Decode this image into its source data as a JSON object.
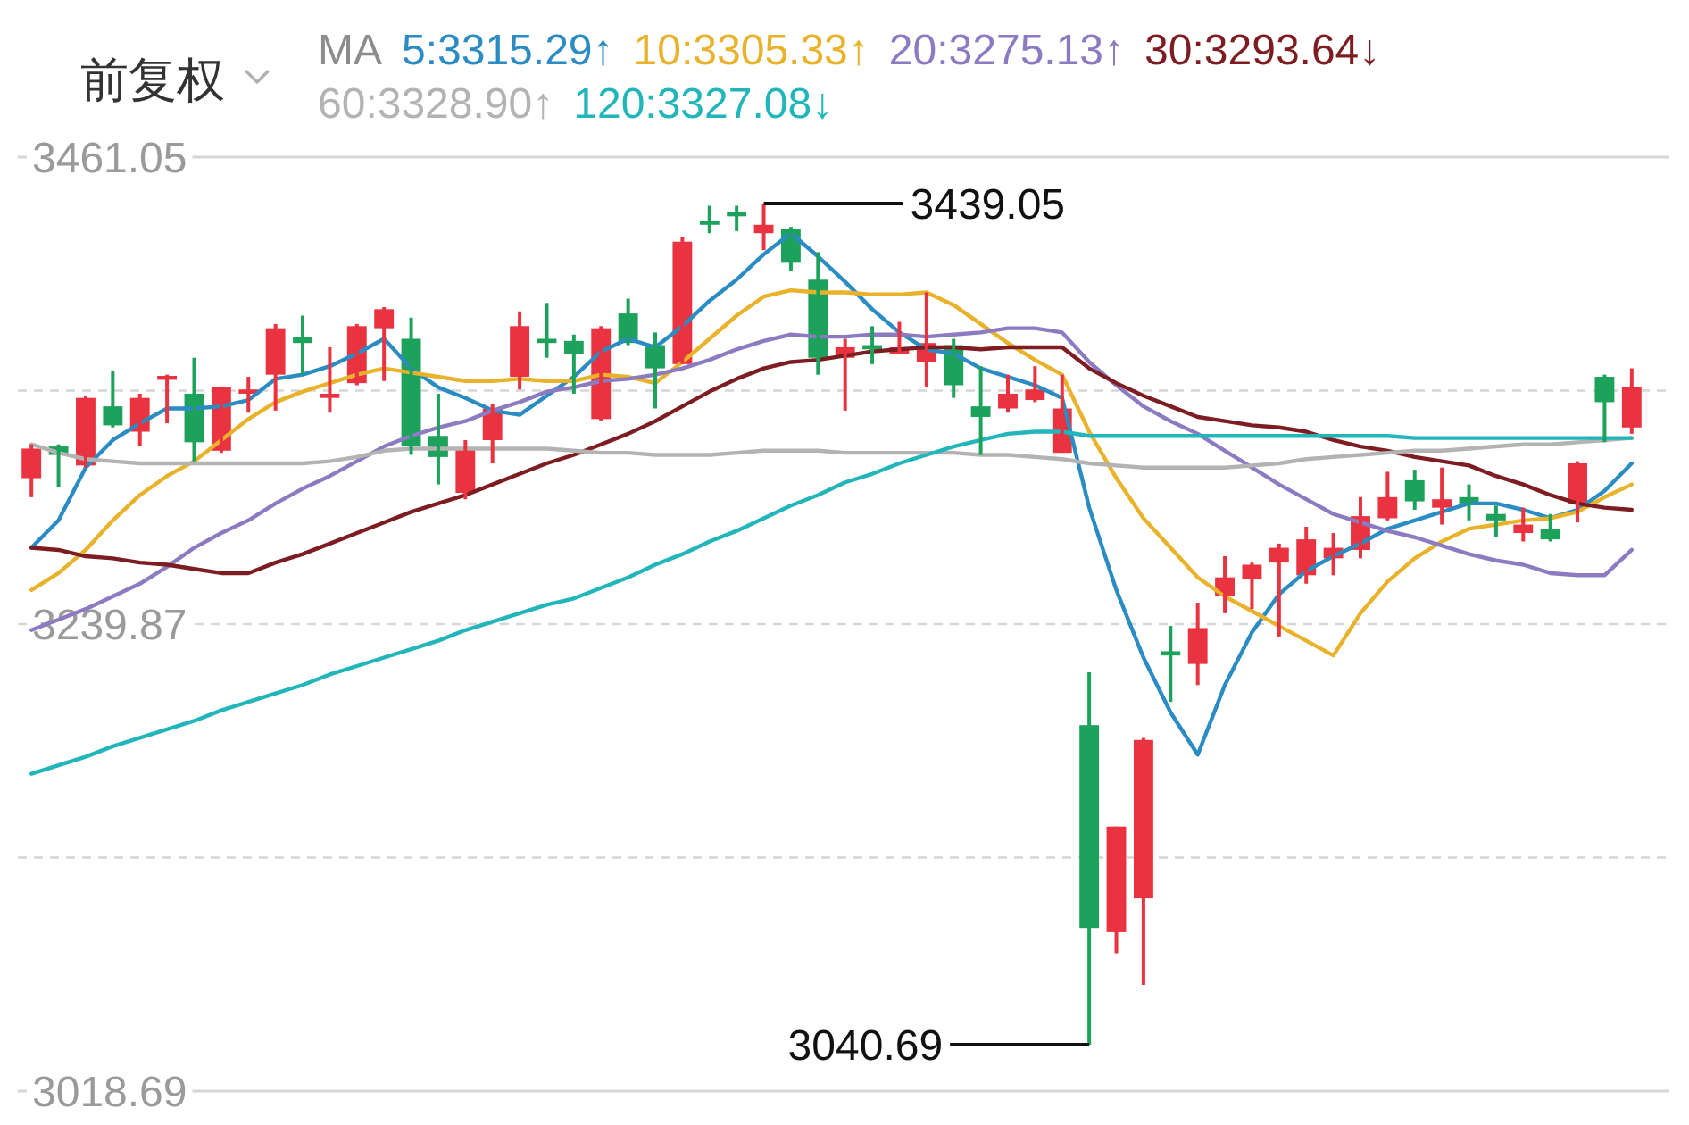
{
  "chart_data": {
    "type": "candlestick",
    "categories": [
      null,
      null,
      null,
      null,
      null,
      null,
      null,
      null,
      null,
      null,
      null,
      null,
      null,
      null,
      null,
      null,
      null,
      null,
      null,
      null,
      null,
      null,
      null,
      null,
      null,
      null,
      null,
      null,
      null,
      null,
      null,
      null,
      null,
      null,
      null,
      null,
      null,
      null,
      null,
      null,
      null,
      null,
      null,
      null,
      null,
      null,
      null,
      null,
      null,
      null,
      null,
      null,
      null,
      null,
      null,
      null,
      null,
      null,
      null,
      null
    ],
    "ohlc": [
      [
        3309,
        3325,
        3300,
        3323
      ],
      [
        3324,
        3325,
        3305,
        3320
      ],
      [
        3315,
        3348,
        3314,
        3347
      ],
      [
        3343,
        3360,
        3333,
        3334
      ],
      [
        3331,
        3349,
        3324,
        3347
      ],
      [
        3356,
        3358,
        3335,
        3357
      ],
      [
        3349,
        3366,
        3317,
        3326
      ],
      [
        3322,
        3352,
        3321,
        3352
      ],
      [
        3349,
        3357,
        3340,
        3351
      ],
      [
        3358,
        3382,
        3341,
        3380
      ],
      [
        3376,
        3386,
        3358,
        3373
      ],
      [
        3347,
        3371,
        3340,
        3349
      ],
      [
        3354,
        3382,
        3353,
        3381
      ],
      [
        3380,
        3390,
        3355,
        3389
      ],
      [
        3375,
        3385,
        3320,
        3324
      ],
      [
        3329,
        3349,
        3306,
        3319
      ],
      [
        3302,
        3327,
        3299,
        3323
      ],
      [
        3327,
        3344,
        3316,
        3342
      ],
      [
        3357,
        3388,
        3351,
        3381
      ],
      [
        3375,
        3392,
        3366,
        3373
      ],
      [
        3374,
        3377,
        3349,
        3368
      ],
      [
        3337,
        3381,
        3336,
        3380
      ],
      [
        3387,
        3394,
        3372,
        3373
      ],
      [
        3372,
        3378,
        3342,
        3361
      ],
      [
        3363,
        3423,
        3363,
        3421
      ],
      [
        3431,
        3438,
        3425,
        3429
      ],
      [
        3435,
        3438,
        3426,
        3433
      ],
      [
        3425,
        3439.05,
        3417,
        3429
      ],
      [
        3427,
        3428,
        3407,
        3411
      ],
      [
        3403,
        3416,
        3358,
        3366
      ],
      [
        3366,
        3375,
        3341,
        3371
      ],
      [
        3372,
        3381,
        3363,
        3370
      ],
      [
        3368,
        3383,
        3368,
        3371
      ],
      [
        3364,
        3397,
        3352,
        3373
      ],
      [
        3372,
        3375,
        3347,
        3353
      ],
      [
        3343,
        3362,
        3320,
        3338
      ],
      [
        3342,
        3358,
        3340,
        3349
      ],
      [
        3346,
        3362,
        3345,
        3351
      ],
      [
        3321,
        3358,
        3321,
        3342
      ],
      [
        3192,
        3217,
        3040.69,
        3096
      ],
      [
        3094,
        3144,
        3084,
        3144
      ],
      [
        3110,
        3186,
        3069,
        3185
      ],
      [
        3227,
        3239,
        3203,
        3225
      ],
      [
        3221,
        3250,
        3211,
        3238
      ],
      [
        3253,
        3272,
        3245,
        3262
      ],
      [
        3261,
        3269,
        3247,
        3268
      ],
      [
        3269,
        3278,
        3234,
        3276
      ],
      [
        3263,
        3286,
        3259,
        3280
      ],
      [
        3271,
        3283,
        3263,
        3276
      ],
      [
        3275,
        3300,
        3271,
        3291
      ],
      [
        3290,
        3312,
        3289,
        3300
      ],
      [
        3308,
        3313,
        3294,
        3298
      ],
      [
        3295,
        3314,
        3287,
        3299
      ],
      [
        3300,
        3306,
        3289,
        3297
      ],
      [
        3292,
        3296,
        3281,
        3289
      ],
      [
        3283,
        3295,
        3279,
        3287
      ],
      [
        3285,
        3292,
        3279,
        3280
      ],
      [
        3297,
        3317,
        3288,
        3316
      ],
      [
        3357,
        3358,
        3326,
        3345
      ],
      [
        3333,
        3361,
        3330,
        3352
      ]
    ],
    "series": [
      {
        "name": "5:3315.29↑",
        "type": "line",
        "color": "#2b8cc4",
        "values": [
          3276,
          3289,
          3314,
          3327,
          3335,
          3342,
          3342,
          3343,
          3346,
          3356,
          3358,
          3362,
          3368,
          3375,
          3361,
          3352,
          3347,
          3341,
          3339,
          3348,
          3357,
          3369,
          3375,
          3371,
          3381,
          3393,
          3403,
          3415,
          3425,
          3414,
          3402,
          3389,
          3378,
          3370,
          3368,
          3361,
          3357,
          3353,
          3347,
          3295,
          3256,
          3224,
          3198,
          3178,
          3211,
          3236,
          3254,
          3265,
          3272,
          3278,
          3285,
          3289,
          3293,
          3297,
          3297,
          3294,
          3290,
          3294,
          3303,
          3316
        ]
      },
      {
        "name": "10:3305.33↑",
        "type": "line",
        "color": "#e8b22a",
        "values": [
          3256,
          3264,
          3275,
          3289,
          3301,
          3310,
          3317,
          3327,
          3337,
          3345,
          3350,
          3354,
          3358,
          3361,
          3359,
          3357,
          3355,
          3355,
          3356,
          3355,
          3355,
          3358,
          3357,
          3354,
          3364,
          3375,
          3386,
          3395,
          3398,
          3397,
          3397,
          3396,
          3396,
          3397,
          3391,
          3382,
          3373,
          3365,
          3358,
          3331,
          3309,
          3290,
          3276,
          3262,
          3253,
          3246,
          3239,
          3232,
          3225,
          3245,
          3260,
          3271,
          3279,
          3285,
          3287,
          3289,
          3290,
          3293,
          3300,
          3306
        ]
      },
      {
        "name": "20:3275.13↑",
        "type": "line",
        "color": "#8d7bc2",
        "values": [
          3237,
          3242,
          3247,
          3253,
          3259,
          3267,
          3276,
          3283,
          3289,
          3297,
          3304,
          3310,
          3317,
          3324,
          3329,
          3333,
          3336,
          3341,
          3345,
          3350,
          3352,
          3355,
          3356,
          3358,
          3361,
          3365,
          3370,
          3374,
          3377,
          3376,
          3376,
          3377,
          3377,
          3376,
          3377,
          3378,
          3380,
          3380,
          3378,
          3364,
          3353,
          3343,
          3336,
          3330,
          3322,
          3314,
          3306,
          3299,
          3292,
          3288,
          3284,
          3281,
          3277,
          3273,
          3270,
          3268,
          3264,
          3263,
          3263,
          3275
        ]
      },
      {
        "name": "30:3293.64↓",
        "type": "line",
        "color": "#7d1d22",
        "values": [
          3276,
          3275,
          3272,
          3271,
          3269,
          3268,
          3266,
          3264,
          3264,
          3269,
          3273,
          3278,
          3283,
          3288,
          3293,
          3297,
          3301,
          3306,
          3311,
          3316,
          3320,
          3325,
          3330,
          3336,
          3343,
          3350,
          3356,
          3361,
          3364,
          3365,
          3367,
          3369,
          3370,
          3371,
          3371,
          3370,
          3371,
          3371,
          3371,
          3361,
          3354,
          3348,
          3343,
          3338,
          3336,
          3334,
          3333,
          3331,
          3327,
          3324,
          3322,
          3319,
          3317,
          3315,
          3310,
          3306,
          3301,
          3297,
          3295,
          3294
        ]
      },
      {
        "name": "60:3328.90↑",
        "type": "line",
        "color": "#b3b3b3",
        "values": [
          3325,
          3321,
          3318,
          3317,
          3316,
          3316,
          3316,
          3316,
          3316,
          3316,
          3316,
          3317,
          3319,
          3322,
          3323,
          3323,
          3323,
          3323,
          3323,
          3323,
          3322,
          3321,
          3321,
          3320,
          3320,
          3320,
          3321,
          3322,
          3322,
          3322,
          3321,
          3321,
          3321,
          3321,
          3321,
          3320,
          3320,
          3319,
          3318,
          3316,
          3315,
          3314,
          3314,
          3314,
          3314,
          3315,
          3316,
          3318,
          3319,
          3320,
          3321,
          3322,
          3322,
          3323,
          3324,
          3325,
          3325,
          3326,
          3327,
          3328
        ]
      },
      {
        "name": "120:3327.08↓",
        "type": "line",
        "color": "#22b6bb",
        "values": [
          3169,
          3173,
          3177,
          3182,
          3186,
          3190,
          3194,
          3199,
          3203,
          3207,
          3211,
          3216,
          3220,
          3224,
          3228,
          3232,
          3237,
          3241,
          3245,
          3249,
          3252,
          3257,
          3262,
          3268,
          3273,
          3279,
          3284,
          3290,
          3296,
          3301,
          3307,
          3311,
          3316,
          3320,
          3324,
          3327,
          3330,
          3331,
          3331,
          3329,
          3329,
          3329,
          3329,
          3329,
          3329,
          3329,
          3329,
          3329,
          3329,
          3329,
          3329,
          3328,
          3328,
          3328,
          3328,
          3328,
          3328,
          3328,
          3328,
          3328
        ]
      }
    ],
    "legend_title": "MA",
    "legend": "top",
    "ylim": [
      3018.69,
      3461.05
    ],
    "yticks": [
      3461.05,
      {
        "value": 3350.46,
        "label": null
      },
      3239.87,
      {
        "value": 3129.28,
        "label": null
      },
      3018.69
    ],
    "grid": "y",
    "tick_labels": "y",
    "annotations": [
      "前复权",
      "3439.05",
      "3040.69"
    ]
  }
}
